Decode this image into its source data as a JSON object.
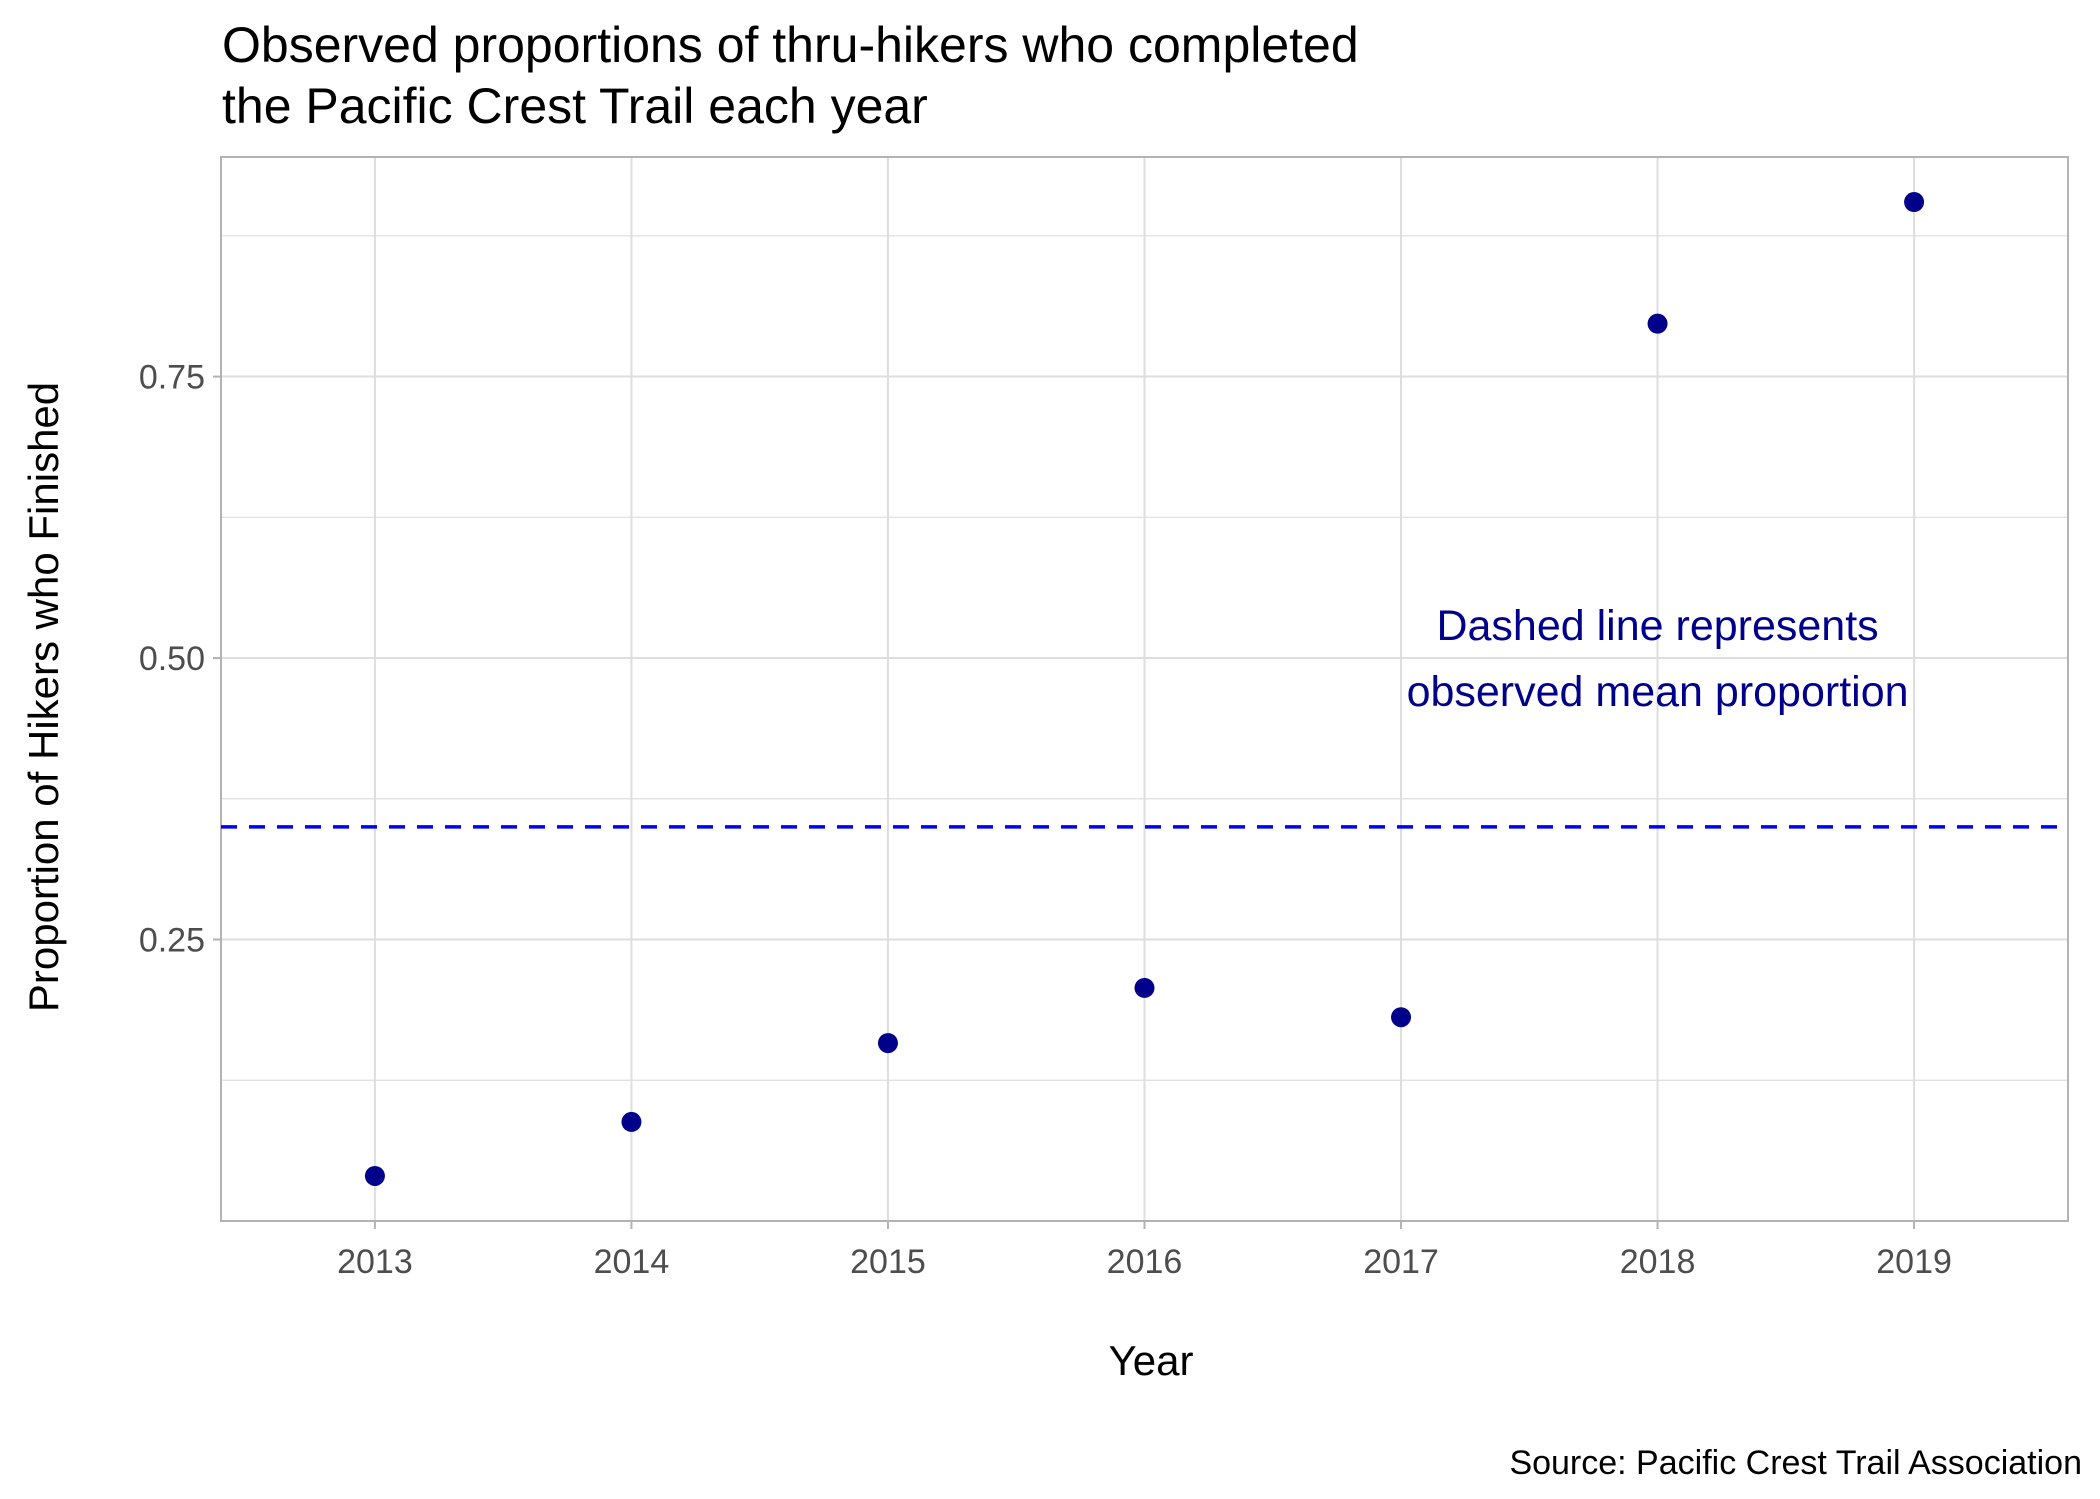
{
  "chart_data": {
    "type": "scatter",
    "title": [
      "Observed proportions of thru-hikers who completed",
      "the Pacific Crest Trail each year"
    ],
    "xlabel": "Year",
    "ylabel": "Proportion of Hikers who Finished",
    "caption": "Source: Pacific Crest Trail Association",
    "annotation": [
      "Dashed line represents",
      "observed mean proportion"
    ],
    "annotation_position": {
      "x": 2018,
      "y": 0.5
    },
    "x": [
      2013,
      2014,
      2015,
      2016,
      2017,
      2018,
      2019
    ],
    "y": [
      0.04,
      0.088,
      0.158,
      0.207,
      0.181,
      0.797,
      0.905
    ],
    "mean_line": 0.35,
    "xlim": [
      2012.4,
      2019.6
    ],
    "ylim": [
      0.0,
      0.945
    ],
    "yticks": [
      0.25,
      0.5,
      0.75
    ],
    "ytick_labels": [
      "0.25",
      "0.50",
      "0.75"
    ],
    "yminor": [
      0.125,
      0.375,
      0.625,
      0.875
    ],
    "xticks": [
      2013,
      2014,
      2015,
      2016,
      2017,
      2018,
      2019
    ],
    "xtick_labels": [
      "2013",
      "2014",
      "2015",
      "2016",
      "2017",
      "2018",
      "2019"
    ],
    "grid": true,
    "colors": {
      "point": "#00008B",
      "mean_line": "#0000FF",
      "annotation": "#00008B",
      "grid": "#DEDEDE",
      "panel_border": "#B3B3B3"
    }
  }
}
